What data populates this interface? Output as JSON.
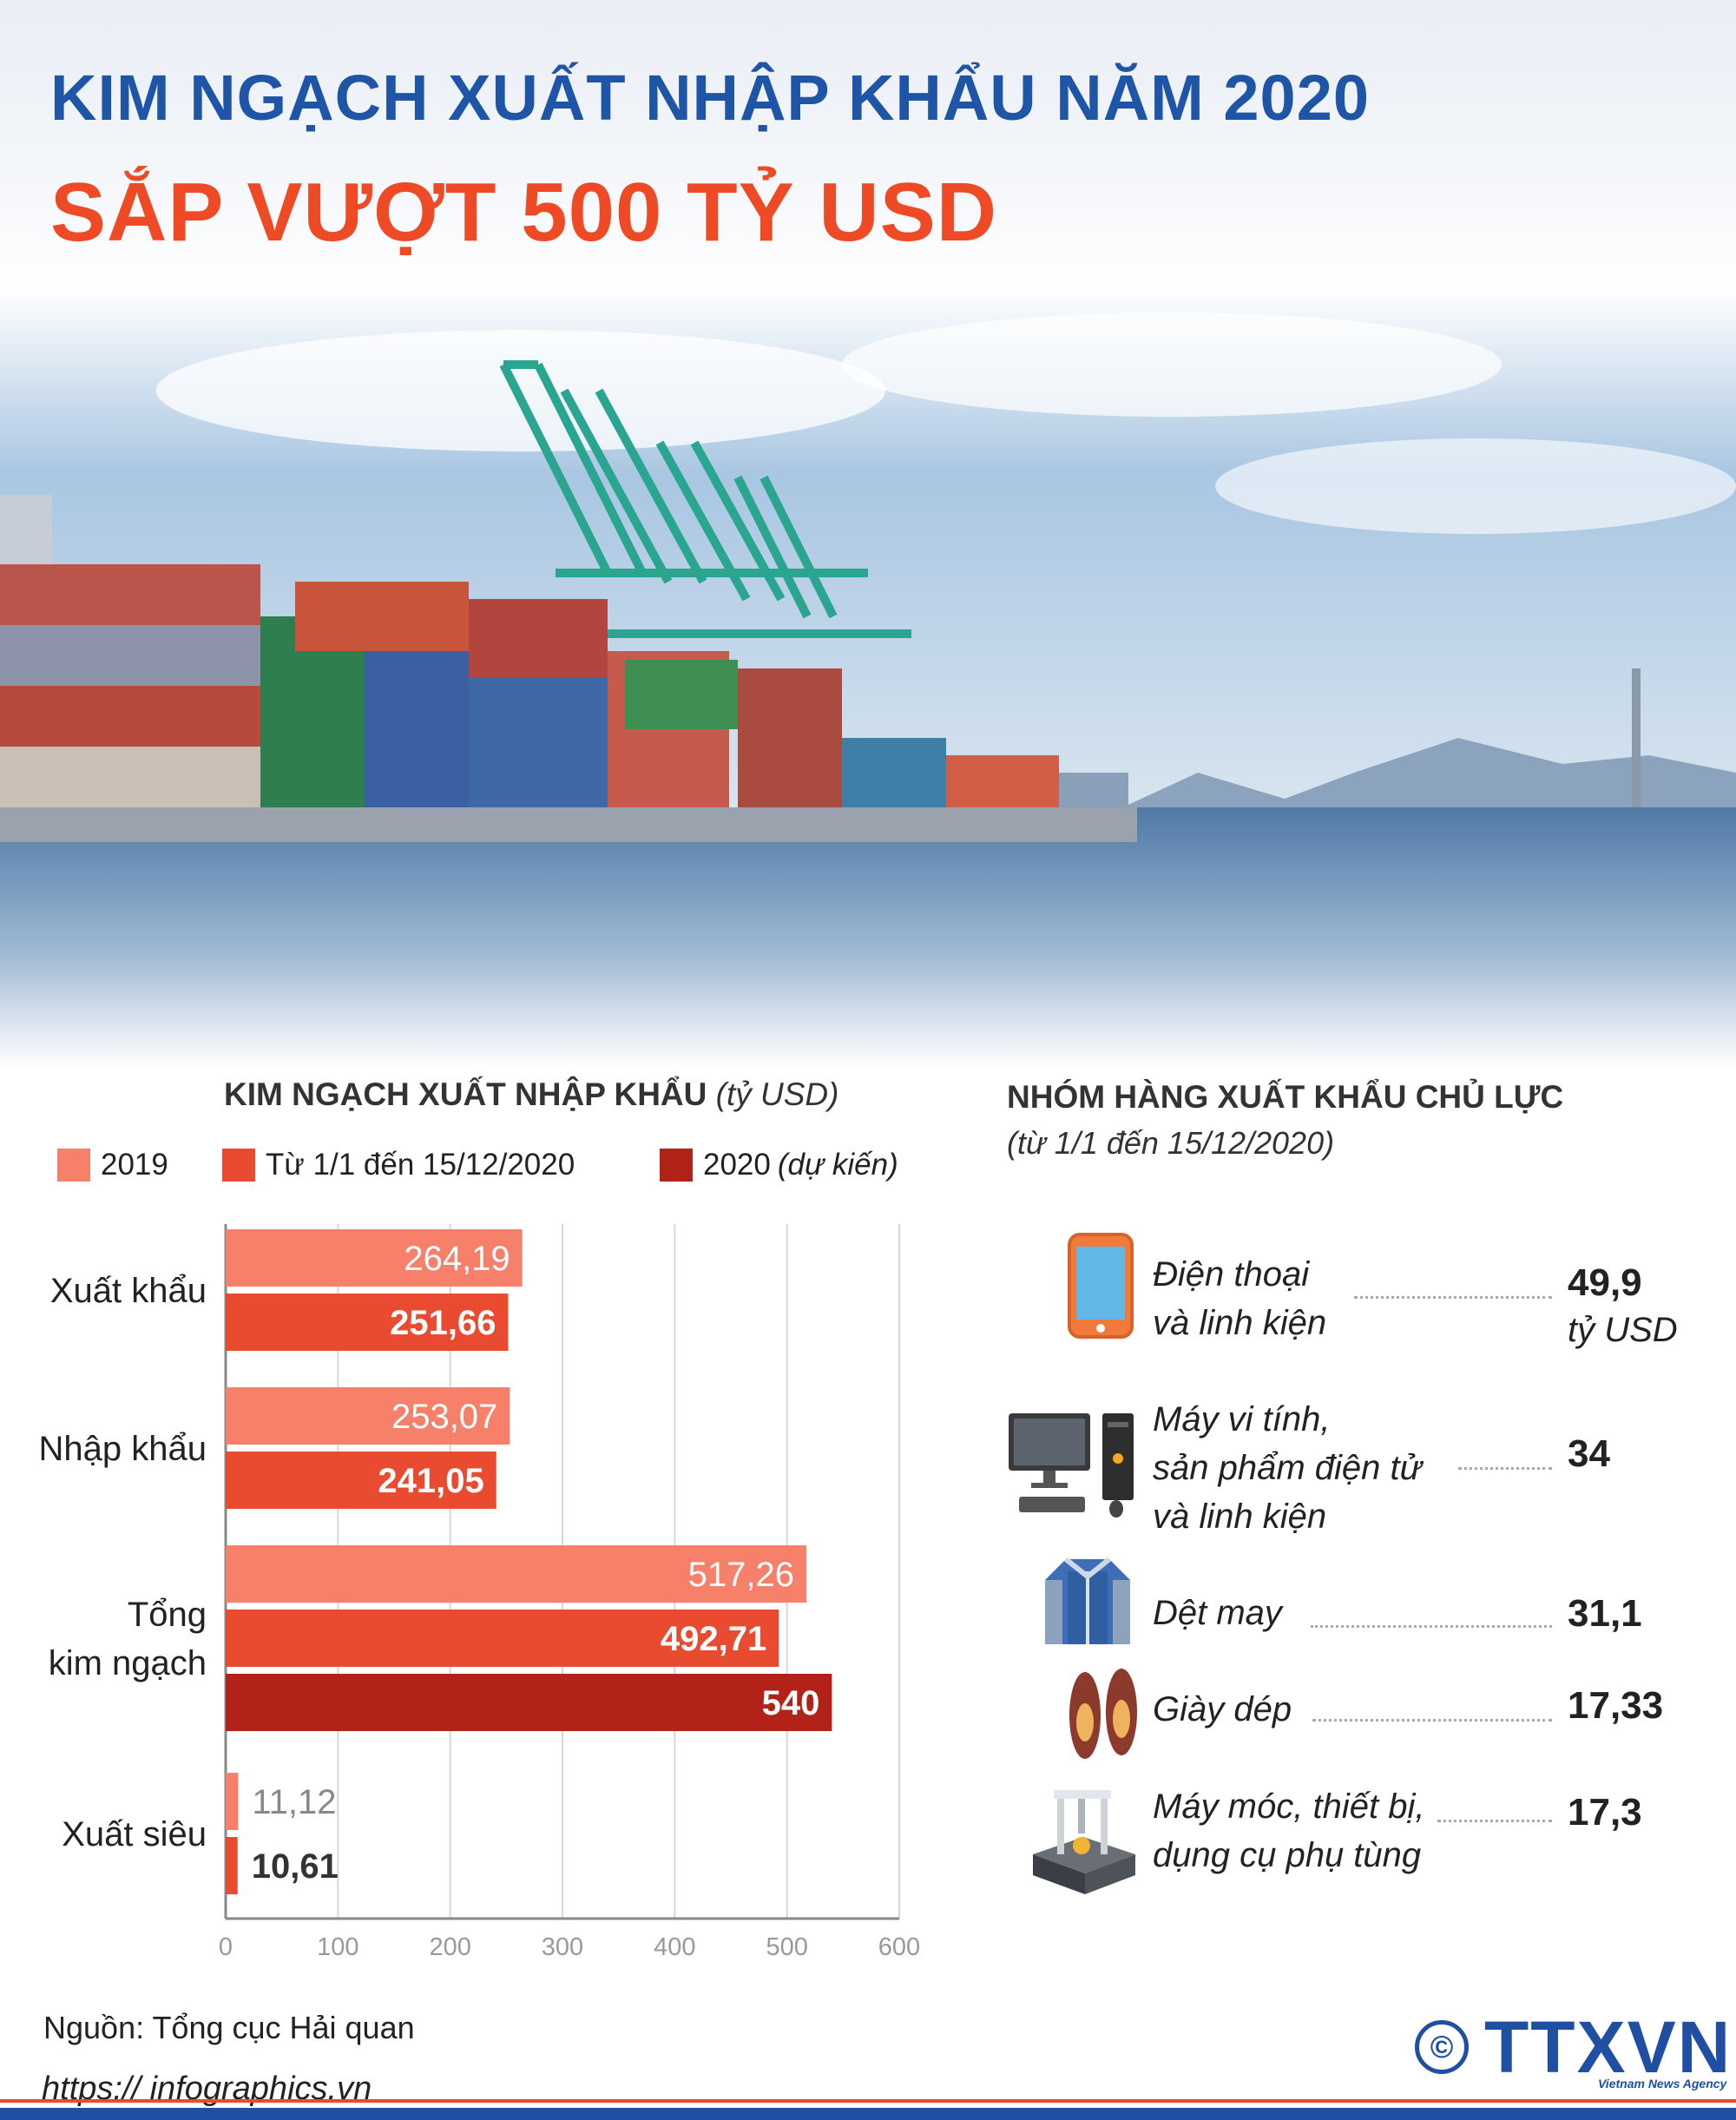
{
  "header": {
    "title_line1": "KIM NGẠCH XUẤT NHẬP KHẨU NĂM 2020",
    "title_line2": "SẮP VƯỢT 500 TỶ USD"
  },
  "left_chart": {
    "title": "KIM NGẠCH XUẤT NHẬP KHẨU",
    "unit": "(tỷ USD)",
    "legend": [
      {
        "label": "2019",
        "label_italic": "",
        "color": "#f7806a"
      },
      {
        "label": "Từ 1/1 đến 15/12/2020",
        "label_italic": "",
        "color": "#e84b30"
      },
      {
        "label": "2020",
        "label_italic": "(dự kiến)",
        "color": "#b32218"
      }
    ]
  },
  "chart_data": {
    "type": "bar",
    "orientation": "horizontal",
    "title": "KIM NGẠCH XUẤT NHẬP KHẨU (tỷ USD)",
    "categories": [
      "Xuất khẩu",
      "Nhập khẩu",
      "Tổng\nkim ngạch",
      "Xuất siêu"
    ],
    "series": [
      {
        "name": "2019",
        "color": "#f7806a",
        "values": [
          264.19,
          253.07,
          517.26,
          11.12
        ],
        "labels": [
          "264,19",
          "253,07",
          "517,26",
          "11,12"
        ]
      },
      {
        "name": "Từ 1/1 đến 15/12/2020",
        "color": "#e84b30",
        "values": [
          251.66,
          241.05,
          492.71,
          10.61
        ],
        "labels": [
          "251,66",
          "241,05",
          "492,71",
          "10,61"
        ]
      },
      {
        "name": "2020 (dự kiến)",
        "color": "#b32218",
        "values": [
          null,
          null,
          540,
          null
        ],
        "labels": [
          "",
          "",
          "540",
          ""
        ]
      }
    ],
    "xlim": [
      0,
      600
    ],
    "ticks": [
      0,
      100,
      200,
      300,
      400,
      500,
      600
    ],
    "grid": true,
    "legend": "top"
  },
  "right_list": {
    "title": "NHÓM HÀNG XUẤT KHẨU CHỦ LỰC",
    "subtitle": "(từ 1/1 đến 15/12/2020)",
    "items": [
      {
        "name": "Điện thoại\nvà linh kiện",
        "value": "49,9",
        "unit": "tỷ USD",
        "icon": "phone-icon"
      },
      {
        "name": "Máy vi tính,\nsản phẩm điện tử\nvà linh kiện",
        "value": "34",
        "unit": "",
        "icon": "computer-icon"
      },
      {
        "name": "Dệt may",
        "value": "31,1",
        "unit": "",
        "icon": "jacket-icon"
      },
      {
        "name": "Giày dép",
        "value": "17,33",
        "unit": "",
        "icon": "shoes-icon"
      },
      {
        "name": "Máy móc, thiết bị,\ndụng cụ phụ tùng",
        "value": "17,3",
        "unit": "",
        "icon": "machine-icon"
      }
    ]
  },
  "footer": {
    "source": "Nguồn: Tổng cục Hải quan",
    "website": "https:// infographics.vn",
    "logo_text": "TTXVN",
    "logo_sub": "Vietnam News Agency",
    "copyright": "©"
  }
}
